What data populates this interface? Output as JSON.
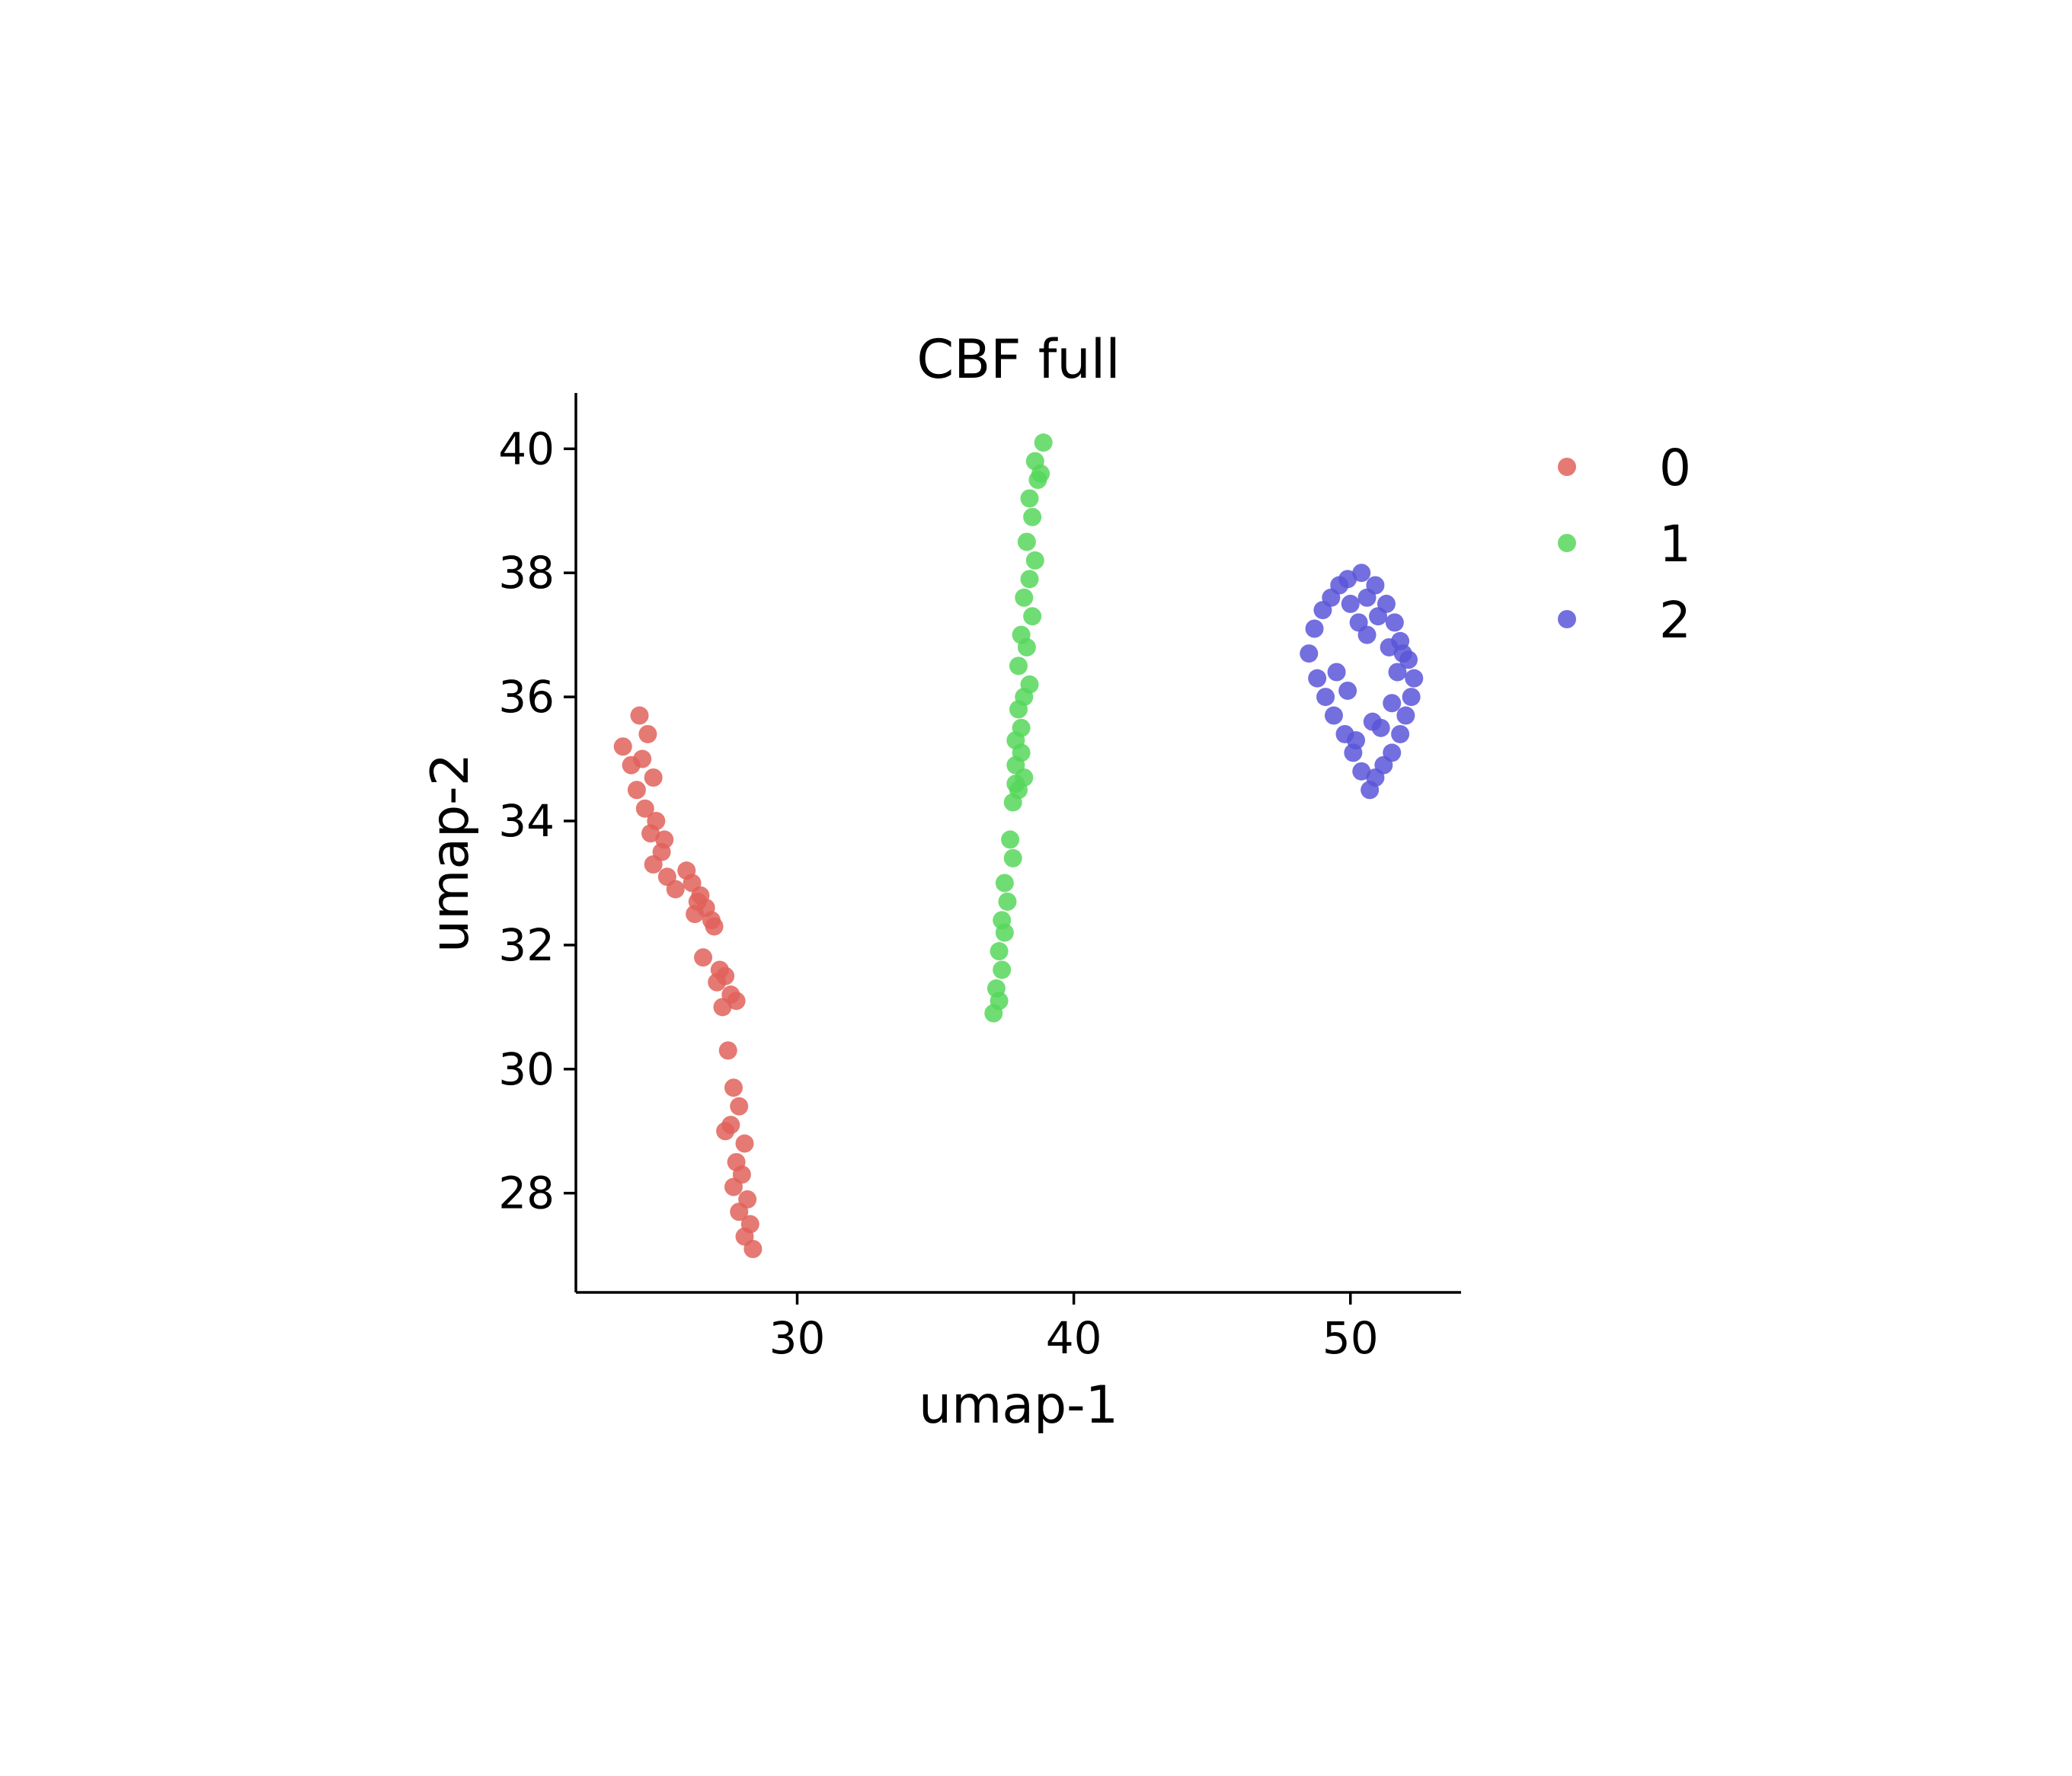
{
  "chart_data": {
    "type": "scatter",
    "title": "CBF full",
    "xlabel": "umap-1",
    "ylabel": "umap-2",
    "xlim": [
      22,
      54
    ],
    "ylim": [
      26.4,
      40.9
    ],
    "xticks": [
      30,
      40,
      50
    ],
    "yticks": [
      28,
      30,
      32,
      34,
      36,
      38,
      40
    ],
    "legend_position": "right",
    "grid": false,
    "series": [
      {
        "name": "0",
        "color": "#e0625a",
        "opacity": 0.85,
        "x": [
          24.3,
          23.7,
          24.6,
          24.0,
          24.4,
          24.8,
          24.2,
          24.5,
          24.9,
          24.7,
          25.1,
          24.8,
          25.3,
          25.6,
          25.2,
          26.0,
          26.2,
          26.5,
          26.3,
          26.7,
          26.9,
          26.4,
          27.0,
          26.6,
          27.2,
          27.1,
          27.4,
          27.6,
          27.3,
          27.8,
          27.5,
          27.7,
          27.9,
          27.6,
          27.4,
          28.1,
          27.8,
          28.0,
          27.7,
          28.2,
          27.9,
          28.3,
          28.1,
          28.4
        ],
        "y": [
          35.7,
          35.2,
          35.4,
          34.9,
          35.0,
          34.7,
          34.5,
          34.2,
          34.0,
          33.8,
          33.5,
          33.3,
          33.1,
          32.9,
          33.7,
          33.2,
          33.0,
          32.8,
          32.5,
          32.6,
          32.4,
          32.7,
          32.3,
          31.8,
          31.6,
          31.4,
          31.5,
          31.2,
          31.0,
          31.1,
          30.3,
          29.7,
          29.4,
          29.1,
          29.0,
          28.8,
          28.5,
          28.3,
          28.1,
          27.9,
          27.7,
          27.5,
          27.3,
          27.1
        ]
      },
      {
        "name": "1",
        "color": "#56d75a",
        "opacity": 0.85,
        "x": [
          38.9,
          38.6,
          38.7,
          38.4,
          38.8,
          38.5,
          38.3,
          38.6,
          38.4,
          38.2,
          38.5,
          38.1,
          38.3,
          38.0,
          38.4,
          38.2,
          38.0,
          38.1,
          37.9,
          38.1,
          37.9,
          38.2,
          38.0,
          37.8,
          37.9,
          37.7,
          37.8,
          37.5,
          37.6,
          37.4,
          37.5,
          37.3,
          37.4,
          37.2,
          37.3,
          37.1
        ],
        "y": [
          40.1,
          39.8,
          39.5,
          39.2,
          39.6,
          38.9,
          38.5,
          38.2,
          37.9,
          37.6,
          37.3,
          37.0,
          36.8,
          36.5,
          36.2,
          36.0,
          35.8,
          35.5,
          35.3,
          35.1,
          34.9,
          34.7,
          34.5,
          34.3,
          34.6,
          33.7,
          33.4,
          33.0,
          32.7,
          32.4,
          32.2,
          31.9,
          31.6,
          31.3,
          31.1,
          30.9
        ]
      },
      {
        "name": "2",
        "color": "#5b56d8",
        "opacity": 0.85,
        "x": [
          49.9,
          50.4,
          50.9,
          51.3,
          51.6,
          51.8,
          52.1,
          52.3,
          52.2,
          52.0,
          51.8,
          51.5,
          51.2,
          50.9,
          50.7,
          50.4,
          50.1,
          49.8,
          49.4,
          49.1,
          48.8,
          48.5,
          48.7,
          49.0,
          49.3,
          49.6,
          50.0,
          50.3,
          50.6,
          51.0,
          51.4,
          51.7,
          51.5,
          50.8,
          50.2,
          49.5,
          49.9,
          51.1,
          50.6,
          51.9
        ],
        "y": [
          37.9,
          38.0,
          37.8,
          37.5,
          37.2,
          36.9,
          36.6,
          36.3,
          36.0,
          35.7,
          35.4,
          35.1,
          34.9,
          34.7,
          34.5,
          34.8,
          35.1,
          35.4,
          35.7,
          36.0,
          36.3,
          36.7,
          37.1,
          37.4,
          37.6,
          37.8,
          37.5,
          37.2,
          37.0,
          37.3,
          36.8,
          36.4,
          35.9,
          35.6,
          35.3,
          36.4,
          36.1,
          35.5,
          37.6,
          36.7
        ]
      }
    ]
  }
}
